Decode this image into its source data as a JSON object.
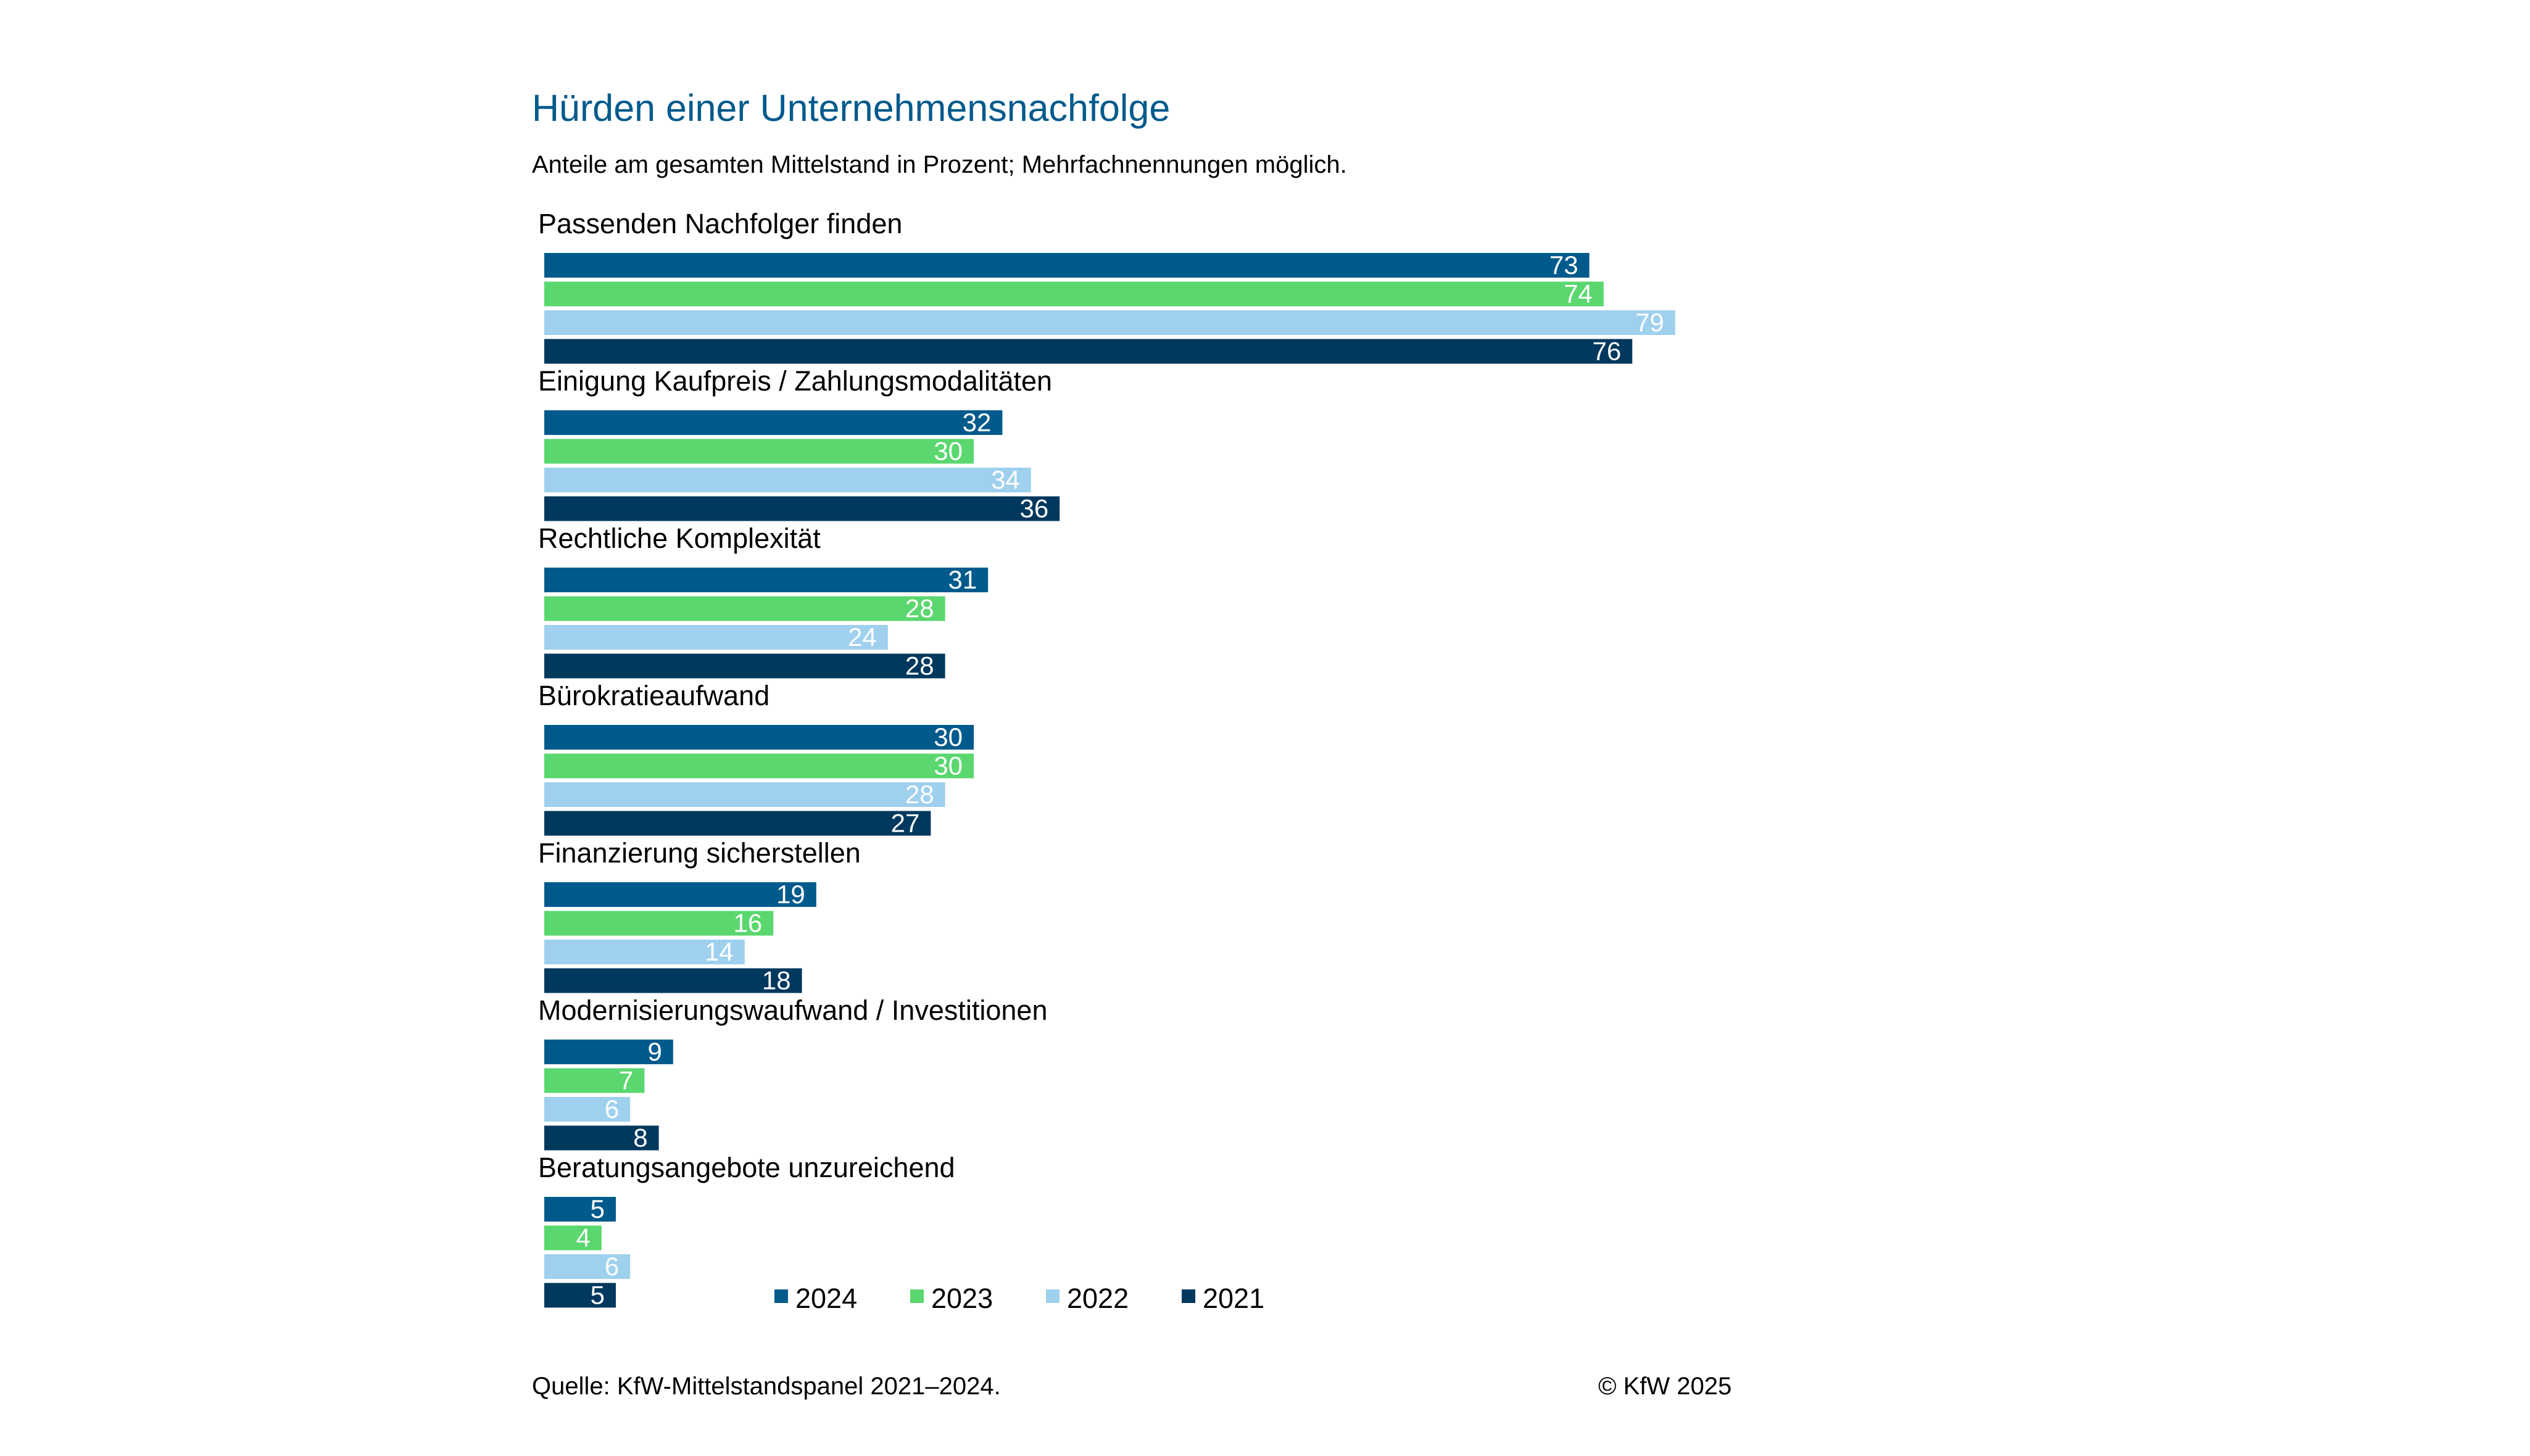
{
  "title": "Hürden einer Unternehmensnachfolge",
  "subtitle": "Anteile am gesamten Mittelstand in Prozent; Mehrfachnennungen möglich.",
  "source": "Quelle: KfW-Mittelstandspanel 2021–2024.",
  "copyright": "© KfW 2025",
  "chart_data": {
    "type": "bar",
    "orientation": "horizontal",
    "title": "Hürden einer Unternehmensnachfolge",
    "subtitle": "Anteile am gesamten Mittelstand in Prozent; Mehrfachnennungen möglich.",
    "categories": [
      "Passenden Nachfolger finden",
      "Einigung Kaufpreis / Zahlungsmodalitäten",
      "Rechtliche Komplexität",
      "Bürokratieaufwand",
      "Finanzierung sicherstellen",
      "Modernisierungswaufwand / Investitionen",
      "Beratungsangebote unzureichend"
    ],
    "series": [
      {
        "name": "2024",
        "color": "#005a8c",
        "values": [
          73,
          32,
          31,
          30,
          19,
          9,
          5
        ]
      },
      {
        "name": "2023",
        "color": "#5ad76e",
        "values": [
          74,
          30,
          28,
          30,
          16,
          7,
          4
        ]
      },
      {
        "name": "2022",
        "color": "#9fd0ee",
        "values": [
          79,
          34,
          24,
          28,
          14,
          6,
          6
        ]
      },
      {
        "name": "2021",
        "color": "#00385e",
        "values": [
          76,
          36,
          28,
          27,
          18,
          8,
          5
        ]
      }
    ],
    "xlim": [
      0,
      100
    ],
    "data_labels": true,
    "grid": false,
    "legend_position": "bottom"
  }
}
